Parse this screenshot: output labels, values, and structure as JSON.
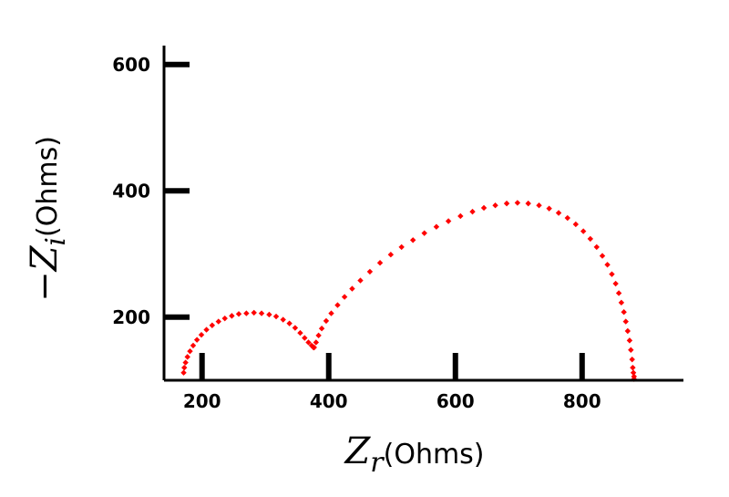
{
  "chart_data": {
    "type": "scatter",
    "title": "",
    "xlabel": {
      "symbol": "Z",
      "subscript": "r",
      "unit": "(Ohms)"
    },
    "ylabel": {
      "symbol": "−Z",
      "subscript": "i",
      "unit": "(Ohms)"
    },
    "xlim": [
      140,
      960
    ],
    "ylim": [
      100,
      630
    ],
    "x_ticks": [
      200,
      400,
      600,
      800
    ],
    "x_tick_labels": [
      "200",
      "400",
      "600",
      "800"
    ],
    "y_ticks": [
      200,
      400,
      600
    ],
    "y_tick_labels": [
      "200",
      "400",
      "600"
    ],
    "grid": false,
    "legend": "none",
    "marker": "diamond",
    "series": [
      {
        "color": "#ff0000",
        "points": [
          [
            171,
            112
          ],
          [
            172,
            120
          ],
          [
            174,
            128
          ],
          [
            177,
            137
          ],
          [
            181,
            146
          ],
          [
            186,
            155
          ],
          [
            192,
            164
          ],
          [
            199,
            172
          ],
          [
            207,
            180
          ],
          [
            216,
            187
          ],
          [
            226,
            193
          ],
          [
            236,
            198
          ],
          [
            247,
            202
          ],
          [
            258,
            205
          ],
          [
            270,
            206
          ],
          [
            282,
            207
          ],
          [
            294,
            206
          ],
          [
            306,
            204
          ],
          [
            317,
            201
          ],
          [
            328,
            196
          ],
          [
            338,
            190
          ],
          [
            347,
            183
          ],
          [
            355,
            175
          ],
          [
            362,
            167
          ],
          [
            368,
            160
          ],
          [
            373,
            155
          ],
          [
            376,
            152
          ],
          [
            377,
            152
          ],
          [
            380,
            160
          ],
          [
            384,
            171
          ],
          [
            389,
            182
          ],
          [
            396,
            194
          ],
          [
            404,
            206
          ],
          [
            414,
            219
          ],
          [
            425,
            232
          ],
          [
            437,
            245
          ],
          [
            450,
            258
          ],
          [
            465,
            272
          ],
          [
            481,
            286
          ],
          [
            498,
            299
          ],
          [
            515,
            311
          ],
          [
            533,
            322
          ],
          [
            551,
            333
          ],
          [
            570,
            343
          ],
          [
            589,
            352
          ],
          [
            608,
            360
          ],
          [
            627,
            367
          ],
          [
            645,
            373
          ],
          [
            663,
            377
          ],
          [
            681,
            380
          ],
          [
            698,
            381
          ],
          [
            715,
            380
          ],
          [
            732,
            377
          ],
          [
            748,
            372
          ],
          [
            763,
            365
          ],
          [
            777,
            357
          ],
          [
            790,
            347
          ],
          [
            802,
            336
          ],
          [
            813,
            324
          ],
          [
            823,
            311
          ],
          [
            832,
            297
          ],
          [
            840,
            283
          ],
          [
            847,
            268
          ],
          [
            853,
            253
          ],
          [
            858,
            238
          ],
          [
            862,
            223
          ],
          [
            866,
            208
          ],
          [
            869,
            193
          ],
          [
            872,
            178
          ],
          [
            875,
            163
          ],
          [
            877,
            148
          ],
          [
            879,
            133
          ],
          [
            880,
            120
          ],
          [
            881,
            112
          ],
          [
            882,
            106
          ],
          [
            882,
            102
          ]
        ]
      }
    ]
  }
}
